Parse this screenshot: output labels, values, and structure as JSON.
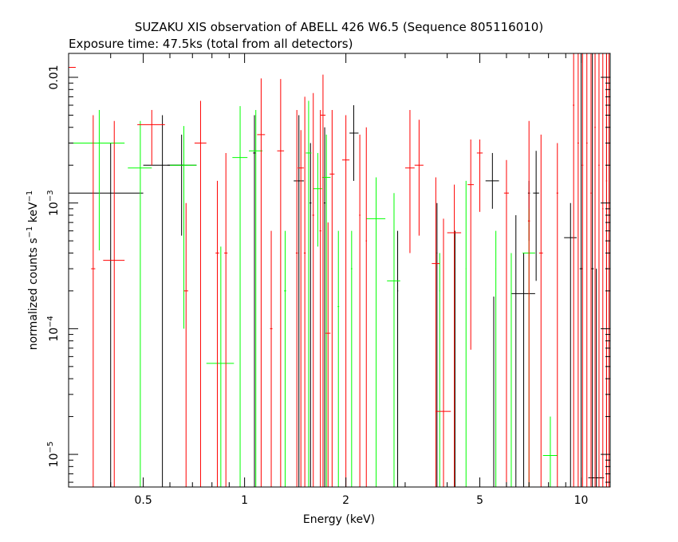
{
  "chart_data": {
    "type": "scatter",
    "title": "SUZAKU XIS observation of ABELL 426 W6.5 (Sequence 805116010)",
    "subtitle": "Exposure time: 47.5ks (total from all detectors)",
    "xlabel": "Energy (keV)",
    "ylabel": {
      "base": "normalized counts s",
      "sup1": "−1",
      "mid": " keV",
      "sup2": "−1"
    },
    "xscale": "log",
    "yscale": "log",
    "xlim": [
      0.3,
      12.2
    ],
    "ylim": [
      5.5e-06,
      0.0155
    ],
    "x_ticks": [
      {
        "v": 0.5,
        "label": "0.5"
      },
      {
        "v": 1,
        "label": "1"
      },
      {
        "v": 2,
        "label": "2"
      },
      {
        "v": 5,
        "label": "5"
      },
      {
        "v": 10,
        "label": "10"
      }
    ],
    "y_ticks": [
      {
        "v": 1e-05,
        "base": "10",
        "exp": "−5"
      },
      {
        "v": 0.0001,
        "base": "10",
        "exp": "−4"
      },
      {
        "v": 0.001,
        "base": "10",
        "exp": "−3"
      },
      {
        "v": 0.01,
        "base": "0.01",
        "exp": ""
      }
    ],
    "series": [
      {
        "color": "#000000",
        "points": [
          {
            "x": 0.4,
            "x0": 0.3,
            "x1": 0.5,
            "y": 0.0012,
            "ylo": 5.5e-06,
            "yhi": 0.003
          },
          {
            "x": 0.57,
            "x0": 0.5,
            "x1": 0.66,
            "y": 0.002,
            "ylo": 5.5e-06,
            "yhi": 0.005
          },
          {
            "x": 0.65,
            "x0": 0.59,
            "x1": 0.72,
            "y": 0.002,
            "ylo": 0.00055,
            "yhi": 0.0035
          },
          {
            "x": 1.07,
            "x0": 1.06,
            "x1": 1.08,
            "y": 0.0025,
            "ylo": 5.5e-06,
            "yhi": 0.005
          },
          {
            "x": 1.45,
            "x0": 1.4,
            "x1": 1.5,
            "y": 0.0015,
            "ylo": 5.5e-06,
            "yhi": 0.005
          },
          {
            "x": 1.57,
            "x0": 1.56,
            "x1": 1.58,
            "y": 0.001,
            "ylo": 5.5e-06,
            "yhi": 0.003
          },
          {
            "x": 1.73,
            "x0": 1.72,
            "x1": 1.74,
            "y": 0.001,
            "ylo": 5.5e-06,
            "yhi": 0.004
          },
          {
            "x": 2.11,
            "x0": 2.05,
            "x1": 2.18,
            "y": 0.0036,
            "ylo": 0.0015,
            "yhi": 0.006
          },
          {
            "x": 2.85,
            "x0": 2.84,
            "x1": 2.86,
            "y": 0.0002,
            "ylo": 5.5e-06,
            "yhi": 0.0006
          },
          {
            "x": 3.73,
            "x0": 3.72,
            "x1": 3.74,
            "y": 0.0004,
            "ylo": 5.5e-06,
            "yhi": 0.001
          },
          {
            "x": 4.22,
            "x0": 4.21,
            "x1": 4.23,
            "y": 0.0003,
            "ylo": 5.5e-06,
            "yhi": 0.0006
          },
          {
            "x": 5.45,
            "x0": 5.2,
            "x1": 5.7,
            "y": 0.0015,
            "ylo": 0.0009,
            "yhi": 0.0025
          },
          {
            "x": 5.5,
            "x0": 5.49,
            "x1": 5.51,
            "y": 0.0001,
            "ylo": 5.5e-06,
            "yhi": 0.00018
          },
          {
            "x": 6.4,
            "x0": 6.39,
            "x1": 6.41,
            "y": 0.0002,
            "ylo": 5.5e-06,
            "yhi": 0.0008
          },
          {
            "x": 6.75,
            "x0": 6.2,
            "x1": 7.3,
            "y": 0.00019,
            "ylo": 5.5e-06,
            "yhi": 0.0004
          },
          {
            "x": 7.0,
            "x0": 6.95,
            "x1": 7.05,
            "y": 0.0012,
            "ylo": 0.0005,
            "yhi": 0.0015
          },
          {
            "x": 7.35,
            "x0": 7.2,
            "x1": 7.5,
            "y": 0.0012,
            "ylo": 0.00024,
            "yhi": 0.0026
          },
          {
            "x": 9.3,
            "x0": 8.9,
            "x1": 9.7,
            "y": 0.00053,
            "ylo": 5.5e-06,
            "yhi": 0.001
          },
          {
            "x": 10.0,
            "x0": 9.9,
            "x1": 10.1,
            "y": 0.0003,
            "ylo": 5.5e-06,
            "yhi": 0.0155
          },
          {
            "x": 10.8,
            "x0": 10.7,
            "x1": 10.9,
            "y": 0.0003,
            "ylo": 5.5e-06,
            "yhi": 0.0155
          },
          {
            "x": 11.1,
            "x0": 10.5,
            "x1": 11.7,
            "y": 6.5e-06,
            "ylo": 5.5e-06,
            "yhi": 0.0003
          },
          {
            "x": 11.9,
            "x0": 11.8,
            "x1": 12.0,
            "y": 0.0003,
            "ylo": 5.5e-06,
            "yhi": 0.0155
          }
        ]
      },
      {
        "color": "#00ff00",
        "points": [
          {
            "x": 0.3,
            "x0": 0.28,
            "x1": 0.44,
            "y": 0.003,
            "ylo": 0.0022,
            "yhi": 0.0035
          },
          {
            "x": 0.37,
            "x0": 0.365,
            "x1": 0.375,
            "y": 0.003,
            "ylo": 0.00042,
            "yhi": 0.0055
          },
          {
            "x": 0.49,
            "x0": 0.45,
            "x1": 0.53,
            "y": 0.0019,
            "ylo": 5.5e-06,
            "yhi": 0.0045
          },
          {
            "x": 0.66,
            "x0": 0.6,
            "x1": 0.72,
            "y": 0.002,
            "ylo": 0.0001,
            "yhi": 0.0041
          },
          {
            "x": 0.85,
            "x0": 0.77,
            "x1": 0.93,
            "y": 5.3e-05,
            "ylo": 5.5e-06,
            "yhi": 0.00045
          },
          {
            "x": 0.97,
            "x0": 0.92,
            "x1": 1.02,
            "y": 0.0023,
            "ylo": 5.5e-06,
            "yhi": 0.0059
          },
          {
            "x": 1.08,
            "x0": 1.03,
            "x1": 1.13,
            "y": 0.0026,
            "ylo": 5.5e-06,
            "yhi": 0.0055
          },
          {
            "x": 1.32,
            "x0": 1.31,
            "x1": 1.33,
            "y": 0.0002,
            "ylo": 5.5e-06,
            "yhi": 0.0006
          },
          {
            "x": 1.55,
            "x0": 1.52,
            "x1": 1.58,
            "y": 0.0025,
            "ylo": 5.5e-06,
            "yhi": 0.0065
          },
          {
            "x": 1.65,
            "x0": 1.6,
            "x1": 1.7,
            "y": 0.0013,
            "ylo": 0.00045,
            "yhi": 0.0025
          },
          {
            "x": 1.75,
            "x0": 1.7,
            "x1": 1.8,
            "y": 0.0016,
            "ylo": 5.5e-06,
            "yhi": 0.0035
          },
          {
            "x": 1.9,
            "x0": 1.89,
            "x1": 1.91,
            "y": 0.00015,
            "ylo": 5.5e-06,
            "yhi": 0.0006
          },
          {
            "x": 2.08,
            "x0": 2.07,
            "x1": 2.09,
            "y": 0.0003,
            "ylo": 5.5e-06,
            "yhi": 0.0006
          },
          {
            "x": 2.46,
            "x0": 2.3,
            "x1": 2.62,
            "y": 0.00075,
            "ylo": 5.5e-06,
            "yhi": 0.0016
          },
          {
            "x": 2.78,
            "x0": 2.65,
            "x1": 2.9,
            "y": 0.00024,
            "ylo": 5.5e-06,
            "yhi": 0.0012
          },
          {
            "x": 3.8,
            "x0": 3.79,
            "x1": 3.81,
            "y": 0.0002,
            "ylo": 5.5e-06,
            "yhi": 0.0004
          },
          {
            "x": 4.2,
            "x0": 4.19,
            "x1": 4.21,
            "y": 0.0002,
            "ylo": 5.5e-06,
            "yhi": 0.0006
          },
          {
            "x": 4.55,
            "x0": 4.54,
            "x1": 4.56,
            "y": 0.0003,
            "ylo": 5.5e-06,
            "yhi": 0.0015
          },
          {
            "x": 5.58,
            "x0": 5.57,
            "x1": 5.59,
            "y": 0.0003,
            "ylo": 5.5e-06,
            "yhi": 0.0006
          },
          {
            "x": 6.2,
            "x0": 6.19,
            "x1": 6.21,
            "y": 0.0002,
            "ylo": 5.5e-06,
            "yhi": 0.0004
          },
          {
            "x": 7.0,
            "x0": 6.7,
            "x1": 7.3,
            "y": 0.0004,
            "ylo": 5.5e-06,
            "yhi": 0.0009
          },
          {
            "x": 8.1,
            "x0": 7.7,
            "x1": 8.5,
            "y": 9.8e-06,
            "ylo": 5.5e-06,
            "yhi": 2e-05
          }
        ]
      },
      {
        "color": "#ff0000",
        "points": [
          {
            "x": 0.3,
            "x0": 0.295,
            "x1": 0.315,
            "y": 0.012,
            "ylo": 0.0095,
            "yhi": 0.0155
          },
          {
            "x": 0.355,
            "x0": 0.35,
            "x1": 0.36,
            "y": 0.0003,
            "ylo": 5.5e-06,
            "yhi": 0.005
          },
          {
            "x": 0.41,
            "x0": 0.38,
            "x1": 0.44,
            "y": 0.00035,
            "ylo": 5.5e-06,
            "yhi": 0.0045
          },
          {
            "x": 0.53,
            "x0": 0.48,
            "x1": 0.58,
            "y": 0.0042,
            "ylo": 0.002,
            "yhi": 0.0055
          },
          {
            "x": 0.67,
            "x0": 0.66,
            "x1": 0.68,
            "y": 0.0002,
            "ylo": 5.5e-06,
            "yhi": 0.001
          },
          {
            "x": 0.74,
            "x0": 0.71,
            "x1": 0.77,
            "y": 0.003,
            "ylo": 5.5e-06,
            "yhi": 0.0065
          },
          {
            "x": 0.83,
            "x0": 0.82,
            "x1": 0.84,
            "y": 0.0004,
            "ylo": 5.5e-06,
            "yhi": 0.0015
          },
          {
            "x": 0.88,
            "x0": 0.87,
            "x1": 0.89,
            "y": 0.0004,
            "ylo": 5.5e-06,
            "yhi": 0.0025
          },
          {
            "x": 1.12,
            "x0": 1.09,
            "x1": 1.15,
            "y": 0.0035,
            "ylo": 5.5e-06,
            "yhi": 0.0098
          },
          {
            "x": 1.2,
            "x0": 1.19,
            "x1": 1.21,
            "y": 0.0001,
            "ylo": 5.5e-06,
            "yhi": 0.0006
          },
          {
            "x": 1.28,
            "x0": 1.25,
            "x1": 1.31,
            "y": 0.0026,
            "ylo": 5.5e-06,
            "yhi": 0.0097
          },
          {
            "x": 1.43,
            "x0": 1.42,
            "x1": 1.44,
            "y": 0.0004,
            "ylo": 5.5e-06,
            "yhi": 0.0055
          },
          {
            "x": 1.47,
            "x0": 1.44,
            "x1": 1.5,
            "y": 0.0019,
            "ylo": 5.5e-06,
            "yhi": 0.0038
          },
          {
            "x": 1.51,
            "x0": 1.5,
            "x1": 1.52,
            "y": 0.0004,
            "ylo": 5.5e-06,
            "yhi": 0.007
          },
          {
            "x": 1.6,
            "x0": 1.59,
            "x1": 1.61,
            "y": 0.0008,
            "ylo": 5.5e-06,
            "yhi": 0.0075
          },
          {
            "x": 1.68,
            "x0": 1.67,
            "x1": 1.69,
            "y": 0.0006,
            "ylo": 5.5e-06,
            "yhi": 0.0055
          },
          {
            "x": 1.71,
            "x0": 1.68,
            "x1": 1.74,
            "y": 0.005,
            "ylo": 5.5e-06,
            "yhi": 0.0105
          },
          {
            "x": 1.77,
            "x0": 1.74,
            "x1": 1.8,
            "y": 9.2e-05,
            "ylo": 5.5e-06,
            "yhi": 0.0007
          },
          {
            "x": 1.82,
            "x0": 1.79,
            "x1": 1.85,
            "y": 0.0017,
            "ylo": 5.5e-06,
            "yhi": 0.0055
          },
          {
            "x": 2.0,
            "x0": 1.95,
            "x1": 2.05,
            "y": 0.0022,
            "ylo": 5.5e-06,
            "yhi": 0.005
          },
          {
            "x": 2.2,
            "x0": 2.19,
            "x1": 2.21,
            "y": 0.0008,
            "ylo": 5.5e-06,
            "yhi": 0.0035
          },
          {
            "x": 2.3,
            "x0": 2.29,
            "x1": 2.31,
            "y": 0.0005,
            "ylo": 5.5e-06,
            "yhi": 0.004
          },
          {
            "x": 3.1,
            "x0": 3.0,
            "x1": 3.2,
            "y": 0.0019,
            "ylo": 0.0004,
            "yhi": 0.0055
          },
          {
            "x": 3.3,
            "x0": 3.2,
            "x1": 3.4,
            "y": 0.002,
            "ylo": 0.00055,
            "yhi": 0.0046
          },
          {
            "x": 3.7,
            "x0": 3.6,
            "x1": 3.8,
            "y": 0.00033,
            "ylo": 5.5e-06,
            "yhi": 0.0016
          },
          {
            "x": 3.9,
            "x0": 3.7,
            "x1": 4.1,
            "y": 2.2e-05,
            "ylo": 5.5e-06,
            "yhi": 0.00075
          },
          {
            "x": 4.2,
            "x0": 4.0,
            "x1": 4.4,
            "y": 0.00058,
            "ylo": 5.5e-06,
            "yhi": 0.0014
          },
          {
            "x": 4.7,
            "x0": 4.6,
            "x1": 4.8,
            "y": 0.0014,
            "ylo": 6.8e-05,
            "yhi": 0.0032
          },
          {
            "x": 5.0,
            "x0": 4.9,
            "x1": 5.1,
            "y": 0.0025,
            "ylo": 0.00085,
            "yhi": 0.0032
          },
          {
            "x": 6.0,
            "x0": 5.9,
            "x1": 6.1,
            "y": 0.0012,
            "ylo": 5.5e-06,
            "yhi": 0.0022
          },
          {
            "x": 7.0,
            "x0": 6.95,
            "x1": 7.05,
            "y": 0.00072,
            "ylo": 5.5e-06,
            "yhi": 0.0045
          },
          {
            "x": 7.6,
            "x0": 7.5,
            "x1": 7.7,
            "y": 0.0004,
            "ylo": 5.5e-06,
            "yhi": 0.0035
          },
          {
            "x": 8.5,
            "x0": 8.45,
            "x1": 8.55,
            "y": 0.0012,
            "ylo": 5.5e-06,
            "yhi": 0.003
          },
          {
            "x": 9.5,
            "x0": 9.45,
            "x1": 9.55,
            "y": 0.006,
            "ylo": 5.5e-06,
            "yhi": 0.0155
          },
          {
            "x": 9.8,
            "x0": 9.75,
            "x1": 9.85,
            "y": 0.003,
            "ylo": 5.5e-06,
            "yhi": 0.0155
          },
          {
            "x": 10.1,
            "x0": 10.05,
            "x1": 10.15,
            "y": 0.002,
            "ylo": 5.5e-06,
            "yhi": 0.0155
          },
          {
            "x": 10.4,
            "x0": 10.35,
            "x1": 10.45,
            "y": 0.003,
            "ylo": 5.5e-06,
            "yhi": 0.0155
          },
          {
            "x": 10.7,
            "x0": 10.65,
            "x1": 10.75,
            "y": 0.0012,
            "ylo": 5.5e-06,
            "yhi": 0.0155
          },
          {
            "x": 11.0,
            "x0": 10.95,
            "x1": 11.05,
            "y": 0.004,
            "ylo": 5.5e-06,
            "yhi": 0.0155
          },
          {
            "x": 11.3,
            "x0": 11.25,
            "x1": 11.35,
            "y": 0.002,
            "ylo": 5.5e-06,
            "yhi": 0.0155
          },
          {
            "x": 11.6,
            "x0": 11.55,
            "x1": 11.65,
            "y": 0.0009,
            "ylo": 5.5e-06,
            "yhi": 0.0155
          },
          {
            "x": 11.9,
            "x0": 11.85,
            "x1": 11.95,
            "y": 0.0015,
            "ylo": 5.5e-06,
            "yhi": 0.0155
          },
          {
            "x": 12.1,
            "x0": 12.05,
            "x1": 12.15,
            "y": 0.003,
            "ylo": 5.5e-06,
            "yhi": 0.0155
          }
        ]
      }
    ]
  }
}
